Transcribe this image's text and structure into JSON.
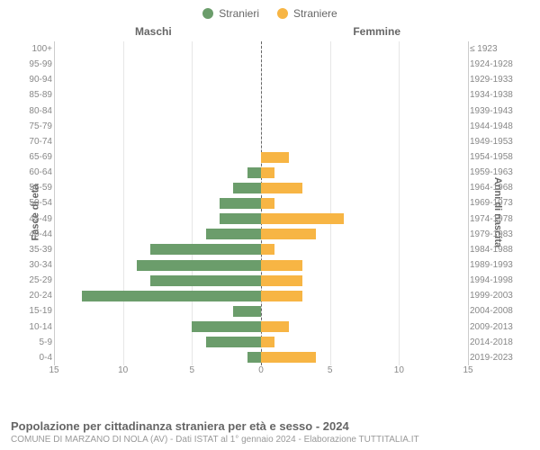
{
  "legend": {
    "male": {
      "label": "Stranieri",
      "color": "#6b9d6b"
    },
    "female": {
      "label": "Straniere",
      "color": "#f7b544"
    }
  },
  "headers": {
    "left": "Maschi",
    "right": "Femmine"
  },
  "axis_labels": {
    "left": "Fasce di età",
    "right": "Anni di nascita"
  },
  "x_axis": {
    "max": 15,
    "ticks": [
      15,
      10,
      5,
      0,
      5,
      10,
      15
    ]
  },
  "rows": [
    {
      "age": "100+",
      "birth": "≤ 1923",
      "male": 0,
      "female": 0
    },
    {
      "age": "95-99",
      "birth": "1924-1928",
      "male": 0,
      "female": 0
    },
    {
      "age": "90-94",
      "birth": "1929-1933",
      "male": 0,
      "female": 0
    },
    {
      "age": "85-89",
      "birth": "1934-1938",
      "male": 0,
      "female": 0
    },
    {
      "age": "80-84",
      "birth": "1939-1943",
      "male": 0,
      "female": 0
    },
    {
      "age": "75-79",
      "birth": "1944-1948",
      "male": 0,
      "female": 0
    },
    {
      "age": "70-74",
      "birth": "1949-1953",
      "male": 0,
      "female": 0
    },
    {
      "age": "65-69",
      "birth": "1954-1958",
      "male": 0,
      "female": 2
    },
    {
      "age": "60-64",
      "birth": "1959-1963",
      "male": 1,
      "female": 1
    },
    {
      "age": "55-59",
      "birth": "1964-1968",
      "male": 2,
      "female": 3
    },
    {
      "age": "50-54",
      "birth": "1969-1973",
      "male": 3,
      "female": 1
    },
    {
      "age": "45-49",
      "birth": "1974-1978",
      "male": 3,
      "female": 6
    },
    {
      "age": "40-44",
      "birth": "1979-1983",
      "male": 4,
      "female": 4
    },
    {
      "age": "35-39",
      "birth": "1984-1988",
      "male": 8,
      "female": 1
    },
    {
      "age": "30-34",
      "birth": "1989-1993",
      "male": 9,
      "female": 3
    },
    {
      "age": "25-29",
      "birth": "1994-1998",
      "male": 8,
      "female": 3
    },
    {
      "age": "20-24",
      "birth": "1999-2003",
      "male": 13,
      "female": 3
    },
    {
      "age": "15-19",
      "birth": "2004-2008",
      "male": 2,
      "female": 0
    },
    {
      "age": "10-14",
      "birth": "2009-2013",
      "male": 5,
      "female": 2
    },
    {
      "age": "5-9",
      "birth": "2014-2018",
      "male": 4,
      "female": 1
    },
    {
      "age": "0-4",
      "birth": "2019-2023",
      "male": 1,
      "female": 4
    }
  ],
  "colors": {
    "male_bar": "#6b9d6b",
    "female_bar": "#f7b544",
    "grid": "#e6e6e6",
    "center_line": "#666666",
    "background": "#ffffff",
    "text": "#666666",
    "tick_text": "#888888"
  },
  "title": "Popolazione per cittadinanza straniera per età e sesso - 2024",
  "subtitle": "COMUNE DI MARZANO DI NOLA (AV) - Dati ISTAT al 1° gennaio 2024 - Elaborazione TUTTITALIA.IT"
}
